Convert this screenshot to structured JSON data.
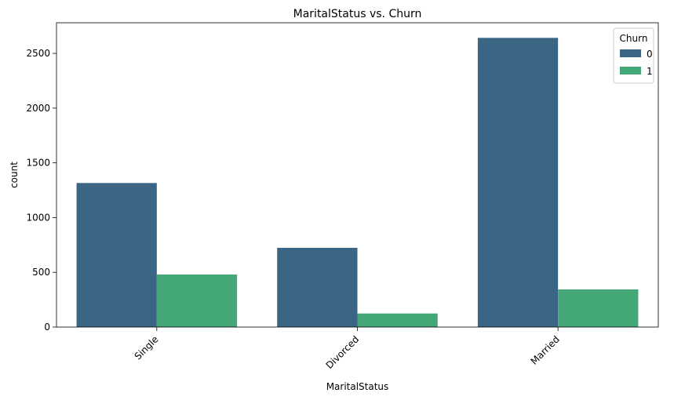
{
  "chart_data": {
    "type": "bar",
    "title": "MaritalStatus vs. Churn",
    "xlabel": "MaritalStatus",
    "ylabel": "count",
    "categories": [
      "Single",
      "Divorced",
      "Married"
    ],
    "series": [
      {
        "name": "0",
        "values": [
          1316,
          724,
          2642
        ],
        "color": "#3b6584"
      },
      {
        "name": "1",
        "values": [
          480,
          124,
          344
        ],
        "color": "#43a876"
      }
    ],
    "ylim": [
      0,
      2780
    ],
    "yticks": [
      0,
      500,
      1000,
      1500,
      2000,
      2500
    ],
    "legend": {
      "title": "Churn",
      "placement": "top-right"
    },
    "grid": false
  }
}
